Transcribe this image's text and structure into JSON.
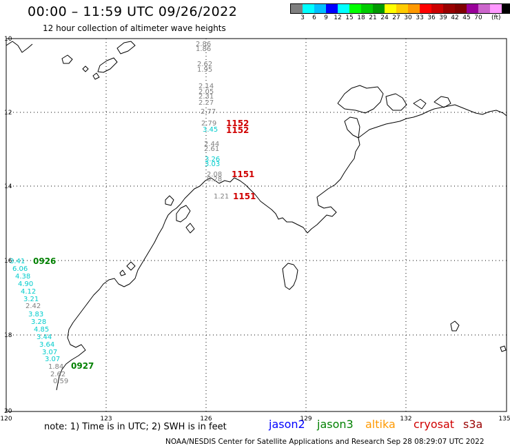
{
  "header": {
    "title": "00:00 – 11:59 UTC 09/26/2022",
    "subtitle": "12 hour collection of altimeter wave heights"
  },
  "colorbar": {
    "colors": [
      "#7f7f7f",
      "#00ffff",
      "#00bfff",
      "#0000ff",
      "#00ffff",
      "#00ff00",
      "#00cc00",
      "#009900",
      "#ffff00",
      "#ffcc00",
      "#ff9900",
      "#ff0000",
      "#cc0000",
      "#990000",
      "#800000",
      "#990099",
      "#cc66cc",
      "#ff99ff",
      "#000000"
    ],
    "labels": [
      "3",
      "6",
      "9",
      "12",
      "15",
      "18",
      "21",
      "24",
      "27",
      "30",
      "33",
      "36",
      "39",
      "42",
      "45",
      "70"
    ],
    "unit": "(ft)"
  },
  "map": {
    "lat_ticks": [
      "10",
      "12",
      "14",
      "16",
      "18",
      "20"
    ],
    "lon_ticks": [
      "120",
      "123",
      "126",
      "129",
      "132",
      "135"
    ],
    "passes": [
      {
        "sat": "cryosat",
        "color": "#d00000",
        "label": "1152"
      },
      {
        "sat": "cryosat",
        "color": "#d00000",
        "label": "1152"
      },
      {
        "sat": "cryosat",
        "color": "#d00000",
        "label": "1151"
      },
      {
        "sat": "cryosat",
        "color": "#d00000",
        "label": "1151"
      },
      {
        "sat": "jason3",
        "color": "#008000",
        "label": "0926"
      },
      {
        "sat": "jason3",
        "color": "#008000",
        "label": "0927"
      }
    ],
    "swh_track_a": [
      {
        "v": "2.86",
        "c": "#7f7f7f"
      },
      {
        "v": "1.86",
        "c": "#7f7f7f"
      },
      {
        "v": "2.62",
        "c": "#7f7f7f"
      },
      {
        "v": "1.95",
        "c": "#7f7f7f"
      },
      {
        "v": "2.14",
        "c": "#7f7f7f"
      },
      {
        "v": "2.05",
        "c": "#7f7f7f"
      },
      {
        "v": "2.31",
        "c": "#7f7f7f"
      },
      {
        "v": "2.27",
        "c": "#7f7f7f"
      },
      {
        "v": "2.77",
        "c": "#7f7f7f"
      },
      {
        "v": "2.79",
        "c": "#7f7f7f"
      },
      {
        "v": "3.45",
        "c": "#00cccc"
      },
      {
        "v": "2.44",
        "c": "#7f7f7f"
      },
      {
        "v": "2.61",
        "c": "#7f7f7f"
      },
      {
        "v": "3.26",
        "c": "#00cccc"
      },
      {
        "v": "3.03",
        "c": "#00cccc"
      },
      {
        "v": "2.08",
        "c": "#7f7f7f"
      },
      {
        "v": "0.28",
        "c": "#7f7f7f"
      },
      {
        "v": "1.21",
        "c": "#7f7f7f"
      }
    ],
    "swh_track_b": [
      {
        "v": "3.41",
        "c": "#00cccc"
      },
      {
        "v": "6.06",
        "c": "#00cccc"
      },
      {
        "v": "4.38",
        "c": "#00cccc"
      },
      {
        "v": "4.90",
        "c": "#00cccc"
      },
      {
        "v": "4.12",
        "c": "#00cccc"
      },
      {
        "v": "3.21",
        "c": "#00cccc"
      },
      {
        "v": "2.42",
        "c": "#7f7f7f"
      },
      {
        "v": "3.83",
        "c": "#00cccc"
      },
      {
        "v": "3.28",
        "c": "#00cccc"
      },
      {
        "v": "4.85",
        "c": "#00cccc"
      },
      {
        "v": "3.44",
        "c": "#00cccc"
      },
      {
        "v": "3.64",
        "c": "#00cccc"
      },
      {
        "v": "3.07",
        "c": "#00cccc"
      },
      {
        "v": "3.07",
        "c": "#00cccc"
      },
      {
        "v": "1.84",
        "c": "#7f7f7f"
      },
      {
        "v": "2.62",
        "c": "#7f7f7f"
      },
      {
        "v": "0.59",
        "c": "#7f7f7f"
      }
    ]
  },
  "footer": {
    "note": "note:  1) Time is in UTC;  2) SWH is in feet",
    "satellites": [
      {
        "name": "jason2",
        "color": "#0000ff"
      },
      {
        "name": "jason3",
        "color": "#008000"
      },
      {
        "name": "altika",
        "color": "#ff9900"
      },
      {
        "name": "cryosat",
        "color": "#d00000"
      },
      {
        "name": "s3a",
        "color": "#990000"
      }
    ],
    "credit": "NOAA/NESDIS Center for Satellite Applications and Research    Sep 28 08:29:07 UTC 2022"
  }
}
